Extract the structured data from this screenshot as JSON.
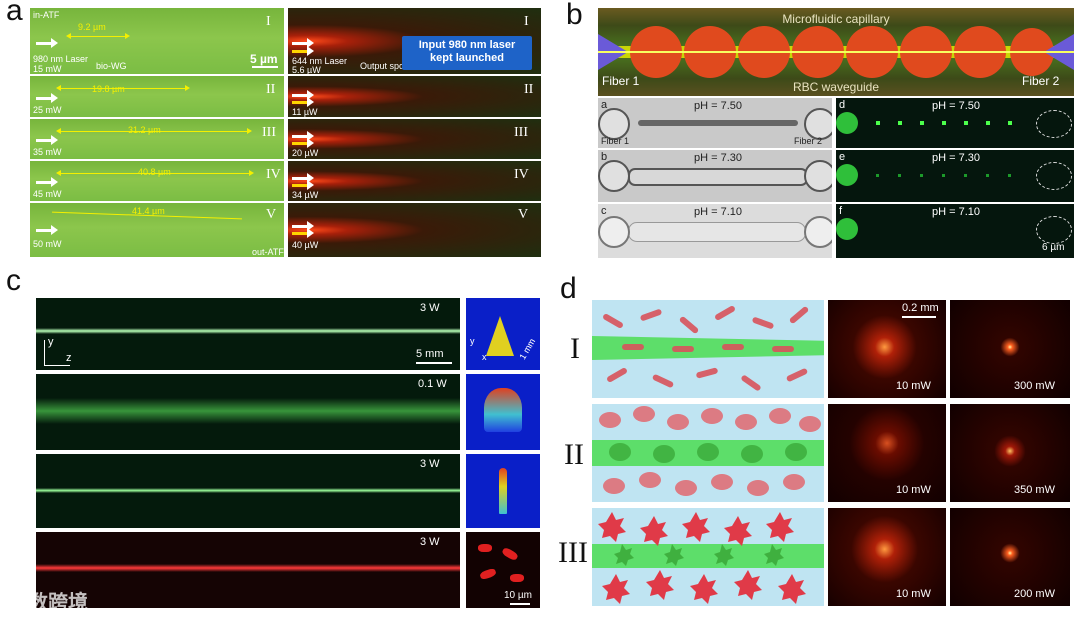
{
  "panels": {
    "a": {
      "label": "a",
      "left_rows": [
        {
          "roman": "I",
          "power": "15 mW",
          "dist": "9.2 µm"
        },
        {
          "roman": "II",
          "power": "25 mW",
          "dist": "19.8 µm"
        },
        {
          "roman": "III",
          "power": "35 mW",
          "dist": "31.2 µm"
        },
        {
          "roman": "IV",
          "power": "45 mW",
          "dist": "40.8 µm"
        },
        {
          "roman": "V",
          "power": "50 mW",
          "dist": "41.4 µm"
        }
      ],
      "right_rows": [
        {
          "roman": "I",
          "power": "5.6 µW"
        },
        {
          "roman": "II",
          "power": "11 µW"
        },
        {
          "roman": "III",
          "power": "20 µW"
        },
        {
          "roman": "IV",
          "power": "34 µW"
        },
        {
          "roman": "V",
          "power": "40 µW"
        }
      ],
      "in_atf": "in-ATF",
      "laser980": "980 nm Laser",
      "bio_wg": "bio-WG",
      "scale": "5 µm",
      "laser644": "644 nm Laser",
      "output_spot": "Output spot",
      "out_atf": "out-ATF",
      "callout_line1": "Input 980 nm laser",
      "callout_line2": "kept launched"
    },
    "b": {
      "label": "b",
      "top_title": "Microfluidic capillary",
      "fiber1": "Fiber 1",
      "fiber2": "Fiber 2",
      "waveguide": "RBC waveguide",
      "rows": [
        {
          "sub_left": "a",
          "sub_right": "d",
          "ph": "pH = 7.50"
        },
        {
          "sub_left": "b",
          "sub_right": "e",
          "ph": "pH = 7.30"
        },
        {
          "sub_left": "c",
          "sub_right": "f",
          "ph": "pH = 7.10"
        }
      ],
      "scale": "6 µm"
    },
    "c": {
      "label": "c",
      "powers": [
        "3 W",
        "0.1 W",
        "3 W",
        "3 W"
      ],
      "axis_y": "y",
      "axis_z": "z",
      "axis_x": "x",
      "scale_main": "5 mm",
      "scale_inset": "1 mm",
      "scale_micro": "10 µm"
    },
    "d": {
      "label": "d",
      "rows": [
        {
          "roman": "I",
          "low": "10 mW",
          "high": "300 mW"
        },
        {
          "roman": "II",
          "low": "10 mW",
          "high": "350 mW"
        },
        {
          "roman": "III",
          "low": "10 mW",
          "high": "200 mW"
        }
      ],
      "scale": "0.2 mm"
    }
  },
  "watermark": "大数跨境"
}
